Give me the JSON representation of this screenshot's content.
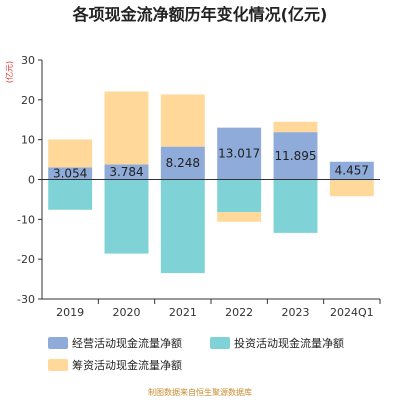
{
  "chart_data": {
    "type": "bar",
    "stacked": true,
    "title": "各项现金流净额历年变化情况(亿元)",
    "unit_label": "(亿元)",
    "categories": [
      "2019",
      "2020",
      "2021",
      "2022",
      "2023",
      "2024Q1"
    ],
    "series": [
      {
        "name": "经营活动现金流量净额",
        "color": "#8eabd9",
        "values": [
          3.054,
          3.784,
          8.248,
          13.017,
          11.895,
          4.457
        ]
      },
      {
        "name": "投资活动现金流量净额",
        "color": "#7fd3d7",
        "values": [
          -7.6,
          -18.6,
          -23.5,
          -8.2,
          -13.4,
          -0.2
        ]
      },
      {
        "name": "筹资活动现金流量净额",
        "color": "#ffd89a",
        "values": [
          7.0,
          18.3,
          13.1,
          -2.4,
          2.6,
          -4.0
        ]
      }
    ],
    "data_labels": [
      "3.054",
      "3.784",
      "8.248",
      "13.017",
      "11.895",
      "4.457"
    ],
    "ylim": [
      -30,
      30
    ],
    "yticks": [
      -30,
      -20,
      -10,
      0,
      10,
      20,
      30
    ],
    "legend_position": "bottom",
    "grid": false,
    "source": "制图数据来自恒生聚源数据库"
  }
}
